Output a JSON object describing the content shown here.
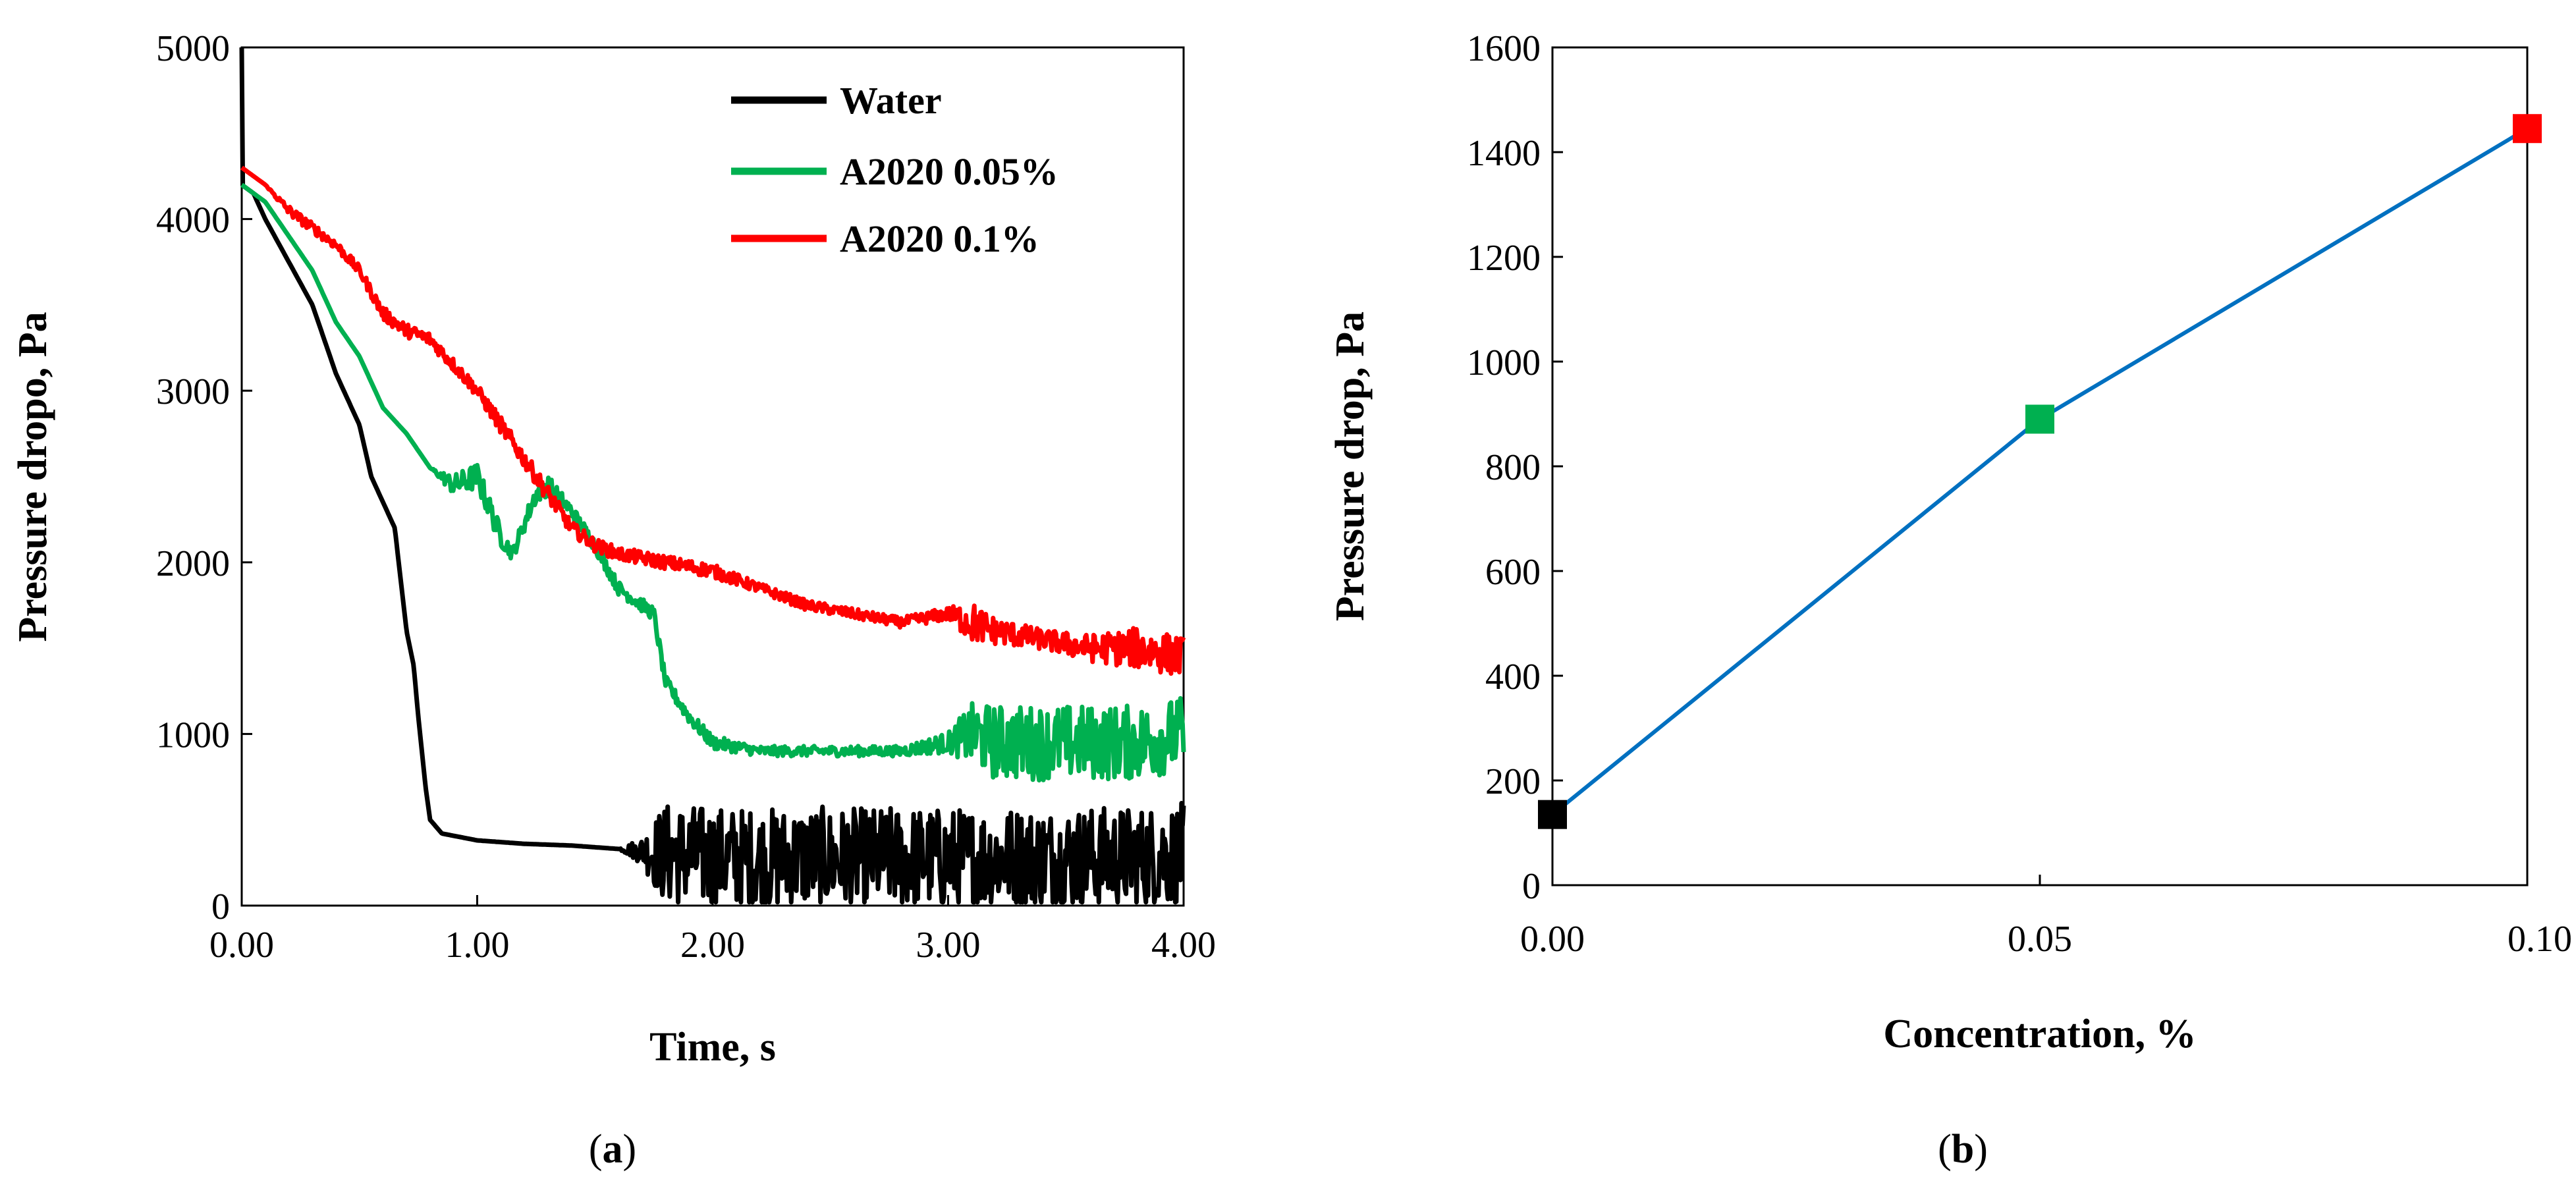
{
  "chart_data": [
    {
      "type": "line",
      "panel_label": "a",
      "xlabel": "Time, s",
      "ylabel": "Pressure dropo, Pa",
      "xlim": [
        0,
        4
      ],
      "ylim": [
        0,
        5000
      ],
      "xticks": [
        "0.00",
        "1.00",
        "2.00",
        "3.00",
        "4.00"
      ],
      "yticks": [
        "0",
        "1000",
        "2000",
        "3000",
        "4000",
        "5000"
      ],
      "legend_position": "top-right",
      "series": [
        {
          "name": "Water",
          "color": "#000000",
          "x": [
            0,
            0.05,
            0.1,
            0.2,
            0.3,
            0.4,
            0.5,
            0.55,
            0.6,
            0.65,
            0.7,
            0.73,
            0.75,
            0.78,
            0.8,
            0.85,
            1.0,
            1.2,
            1.4,
            1.6,
            1.7,
            1.75,
            1.8,
            2.0,
            2.2,
            2.4,
            2.6,
            2.8,
            3.0,
            3.2,
            3.4,
            3.6,
            3.8,
            4.0
          ],
          "values": [
            4200,
            4150,
            4000,
            3750,
            3500,
            3100,
            2800,
            2500,
            2350,
            2200,
            1600,
            1400,
            1100,
            700,
            500,
            420,
            380,
            360,
            350,
            330,
            320,
            310,
            300,
            280,
            270,
            280,
            270,
            280,
            270,
            280,
            275,
            280,
            280,
            300
          ],
          "noise": [
            0,
            0,
            0,
            0,
            0,
            0,
            0,
            0,
            0,
            0,
            0,
            0,
            0,
            0,
            0,
            0,
            0,
            0,
            0,
            0,
            80,
            200,
            300,
            300,
            300,
            300,
            300,
            300,
            300,
            300,
            300,
            300,
            300,
            300
          ]
        },
        {
          "name": "A2020 0.05%",
          "color": "#00b050",
          "x": [
            0,
            0.05,
            0.1,
            0.2,
            0.3,
            0.4,
            0.5,
            0.6,
            0.7,
            0.8,
            0.9,
            1.0,
            1.1,
            1.15,
            1.25,
            1.3,
            1.4,
            1.5,
            1.6,
            1.7,
            1.75,
            1.8,
            1.9,
            2.0,
            2.2,
            2.4,
            2.6,
            2.8,
            3.0,
            3.1,
            3.2,
            3.4,
            3.6,
            3.8,
            4.0
          ],
          "values": [
            4200,
            4150,
            4100,
            3900,
            3700,
            3400,
            3200,
            2900,
            2750,
            2550,
            2450,
            2500,
            2150,
            2050,
            2400,
            2450,
            2300,
            2100,
            1850,
            1750,
            1700,
            1300,
            1100,
            950,
            900,
            900,
            900,
            900,
            950,
            1000,
            950,
            950,
            950,
            950,
            1000
          ],
          "noise": [
            0,
            0,
            0,
            0,
            0,
            0,
            0,
            0,
            0,
            0,
            60,
            80,
            60,
            40,
            60,
            60,
            40,
            40,
            40,
            40,
            40,
            40,
            40,
            40,
            30,
            30,
            30,
            30,
            60,
            180,
            220,
            220,
            220,
            220,
            220
          ]
        },
        {
          "name": "A2020 0.1%",
          "color": "#ff0000",
          "x": [
            0,
            0.05,
            0.1,
            0.2,
            0.3,
            0.4,
            0.5,
            0.6,
            0.7,
            0.8,
            0.9,
            1.0,
            1.1,
            1.2,
            1.3,
            1.4,
            1.5,
            1.6,
            1.8,
            2.0,
            2.2,
            2.4,
            2.6,
            2.8,
            3.0,
            3.1,
            3.2,
            3.4,
            3.6,
            3.8,
            4.0
          ],
          "values": [
            4300,
            4250,
            4200,
            4050,
            3950,
            3850,
            3700,
            3450,
            3350,
            3300,
            3150,
            3000,
            2800,
            2600,
            2400,
            2200,
            2100,
            2050,
            2000,
            1950,
            1850,
            1750,
            1700,
            1650,
            1700,
            1650,
            1600,
            1550,
            1500,
            1500,
            1450
          ],
          "noise": [
            0,
            0,
            0,
            30,
            30,
            30,
            30,
            40,
            40,
            40,
            40,
            40,
            50,
            50,
            50,
            40,
            40,
            40,
            40,
            40,
            30,
            30,
            30,
            30,
            40,
            120,
            80,
            60,
            80,
            120,
            120
          ]
        }
      ]
    },
    {
      "type": "line",
      "panel_label": "b",
      "xlabel": "Concentration, %",
      "ylabel": "Pressure drop, Pa",
      "xlim": [
        0,
        0.1
      ],
      "ylim": [
        0,
        1600
      ],
      "xticks": [
        "0.00",
        "0.05",
        "0.10"
      ],
      "yticks": [
        "0",
        "200",
        "400",
        "600",
        "800",
        "1000",
        "1200",
        "1400",
        "1600"
      ],
      "line_color": "#0070c0",
      "x": [
        0,
        0.05,
        0.1
      ],
      "values": [
        135,
        890,
        1445
      ],
      "marker_colors": [
        "#000000",
        "#00b050",
        "#ff0000"
      ]
    }
  ]
}
